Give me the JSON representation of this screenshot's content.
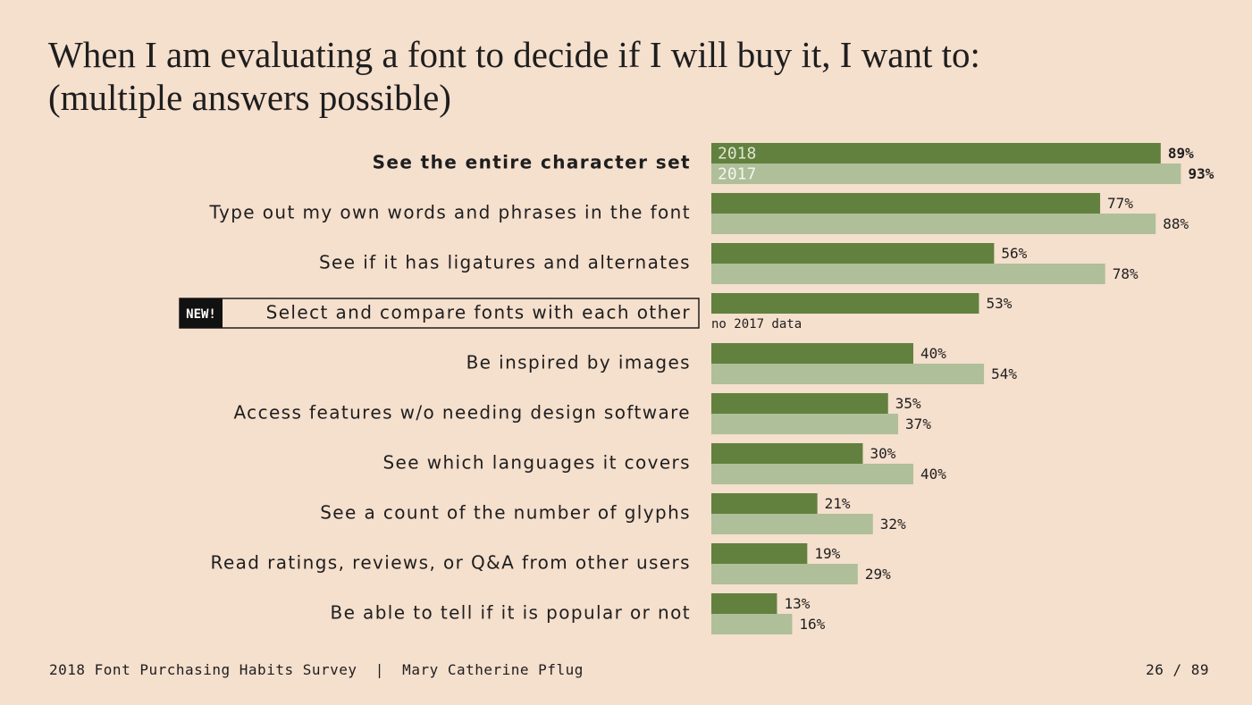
{
  "chart_data": {
    "type": "bar",
    "orientation": "horizontal",
    "title": "When I am evaluating a font to decide if I will buy it, I want to:",
    "subtitle": "(multiple answers possible)",
    "categories": [
      "See the entire character set",
      "Type out my own words and phrases in the font",
      "See if it has ligatures and alternates",
      "Select and compare fonts with each other",
      "Be inspired by images",
      "Access features w/o needing design software",
      "See which languages it covers",
      "See a count of the number of glyphs",
      "Read ratings, reviews, or Q&A from other users",
      "Be able to tell if it is popular or not"
    ],
    "series": [
      {
        "name": "2018",
        "color": "#62813f",
        "values": [
          89,
          77,
          56,
          53,
          40,
          35,
          30,
          21,
          19,
          13
        ],
        "value_labels": [
          "89%",
          "77%",
          "56%",
          "53%",
          "40%",
          "35%",
          "30%",
          "21%",
          "19%",
          "13%"
        ]
      },
      {
        "name": "2017",
        "color": "#afbf9a",
        "values": [
          93,
          88,
          78,
          null,
          54,
          37,
          40,
          32,
          29,
          16
        ],
        "value_labels": [
          "93%",
          "88%",
          "78%",
          null,
          "54%",
          "37%",
          "40%",
          "32%",
          "29%",
          "16%"
        ]
      }
    ],
    "badge": "NEW!",
    "annotation": "no 2017 data"
  },
  "footer": {
    "source": "2018 Font Purchasing Habits Survey  |  Mary Catherine Pflug",
    "page": "26 / 89"
  }
}
